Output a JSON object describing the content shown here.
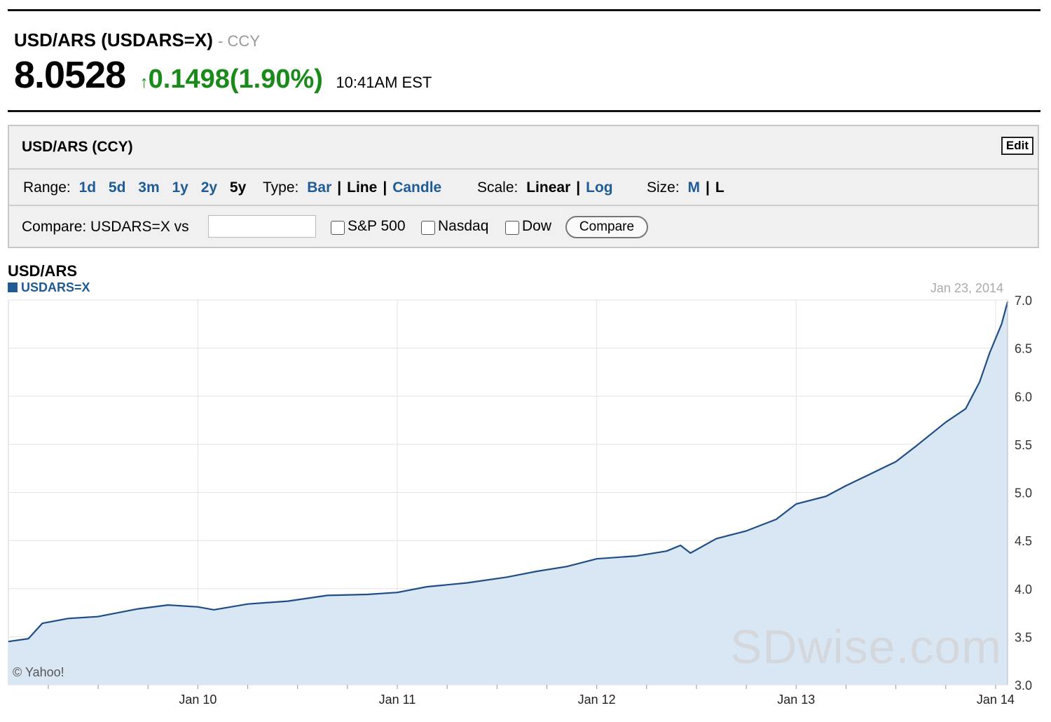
{
  "header": {
    "title": "USD/ARS (USDARS=X)",
    "exchange": "- CCY",
    "price": "8.0528",
    "arrow_icon": "up-arrow-icon",
    "change": "0.1498(1.90%)",
    "time": "10:41AM EST"
  },
  "panel": {
    "title": "USD/ARS (CCY)",
    "edit_label": "Edit",
    "range": {
      "label": "Range:",
      "options": [
        "1d",
        "5d",
        "3m",
        "1y",
        "2y",
        "5y"
      ],
      "selected": "5y"
    },
    "type": {
      "label": "Type:",
      "options": [
        "Bar",
        "Line",
        "Candle"
      ],
      "selected": "Line"
    },
    "scale": {
      "label": "Scale:",
      "options": [
        "Linear",
        "Log"
      ],
      "selected": "Linear"
    },
    "size": {
      "label": "Size:",
      "options": [
        "M",
        "L"
      ],
      "selected": "L"
    },
    "compare": {
      "label": "Compare: USDARS=X vs",
      "input_value": "",
      "checkboxes": [
        "S&P 500",
        "Nasdaq",
        "Dow"
      ],
      "button_label": "Compare"
    }
  },
  "chart_data": {
    "type": "area",
    "title": "USD/ARS",
    "series": [
      {
        "name": "USDARS=X",
        "color": "#1f4e86",
        "fill": "#d9e6f3",
        "points": [
          [
            2009.05,
            3.45
          ],
          [
            2009.15,
            3.48
          ],
          [
            2009.22,
            3.64
          ],
          [
            2009.35,
            3.69
          ],
          [
            2009.5,
            3.71
          ],
          [
            2009.7,
            3.79
          ],
          [
            2009.85,
            3.83
          ],
          [
            2010.0,
            3.81
          ],
          [
            2010.08,
            3.78
          ],
          [
            2010.25,
            3.84
          ],
          [
            2010.45,
            3.87
          ],
          [
            2010.65,
            3.93
          ],
          [
            2010.85,
            3.94
          ],
          [
            2011.0,
            3.96
          ],
          [
            2011.15,
            4.02
          ],
          [
            2011.35,
            4.06
          ],
          [
            2011.55,
            4.12
          ],
          [
            2011.7,
            4.18
          ],
          [
            2011.85,
            4.23
          ],
          [
            2012.0,
            4.31
          ],
          [
            2012.2,
            4.34
          ],
          [
            2012.35,
            4.39
          ],
          [
            2012.42,
            4.45
          ],
          [
            2012.47,
            4.37
          ],
          [
            2012.6,
            4.52
          ],
          [
            2012.75,
            4.6
          ],
          [
            2012.9,
            4.72
          ],
          [
            2013.0,
            4.88
          ],
          [
            2013.15,
            4.96
          ],
          [
            2013.25,
            5.07
          ],
          [
            2013.35,
            5.17
          ],
          [
            2013.5,
            5.32
          ],
          [
            2013.6,
            5.48
          ],
          [
            2013.75,
            5.73
          ],
          [
            2013.85,
            5.87
          ],
          [
            2013.92,
            6.15
          ],
          [
            2013.97,
            6.45
          ],
          [
            2014.03,
            6.75
          ],
          [
            2014.06,
            6.98
          ]
        ]
      }
    ],
    "x_ticks": [
      "Jan 10",
      "Jan 11",
      "Jan 12",
      "Jan 13",
      "Jan 14"
    ],
    "x_tick_values": [
      2010.0,
      2011.0,
      2012.0,
      2013.0,
      2014.0
    ],
    "xlim": [
      2009.05,
      2014.06
    ],
    "y_ticks": [
      "3.0",
      "3.5",
      "4.0",
      "4.5",
      "5.0",
      "5.5",
      "6.0",
      "6.5",
      "7.0"
    ],
    "ylim": [
      3.0,
      7.0
    ],
    "grid": true,
    "date_label": "Jan 23, 2014",
    "copyright": "© Yahoo!"
  },
  "watermark": "SDwise.com"
}
